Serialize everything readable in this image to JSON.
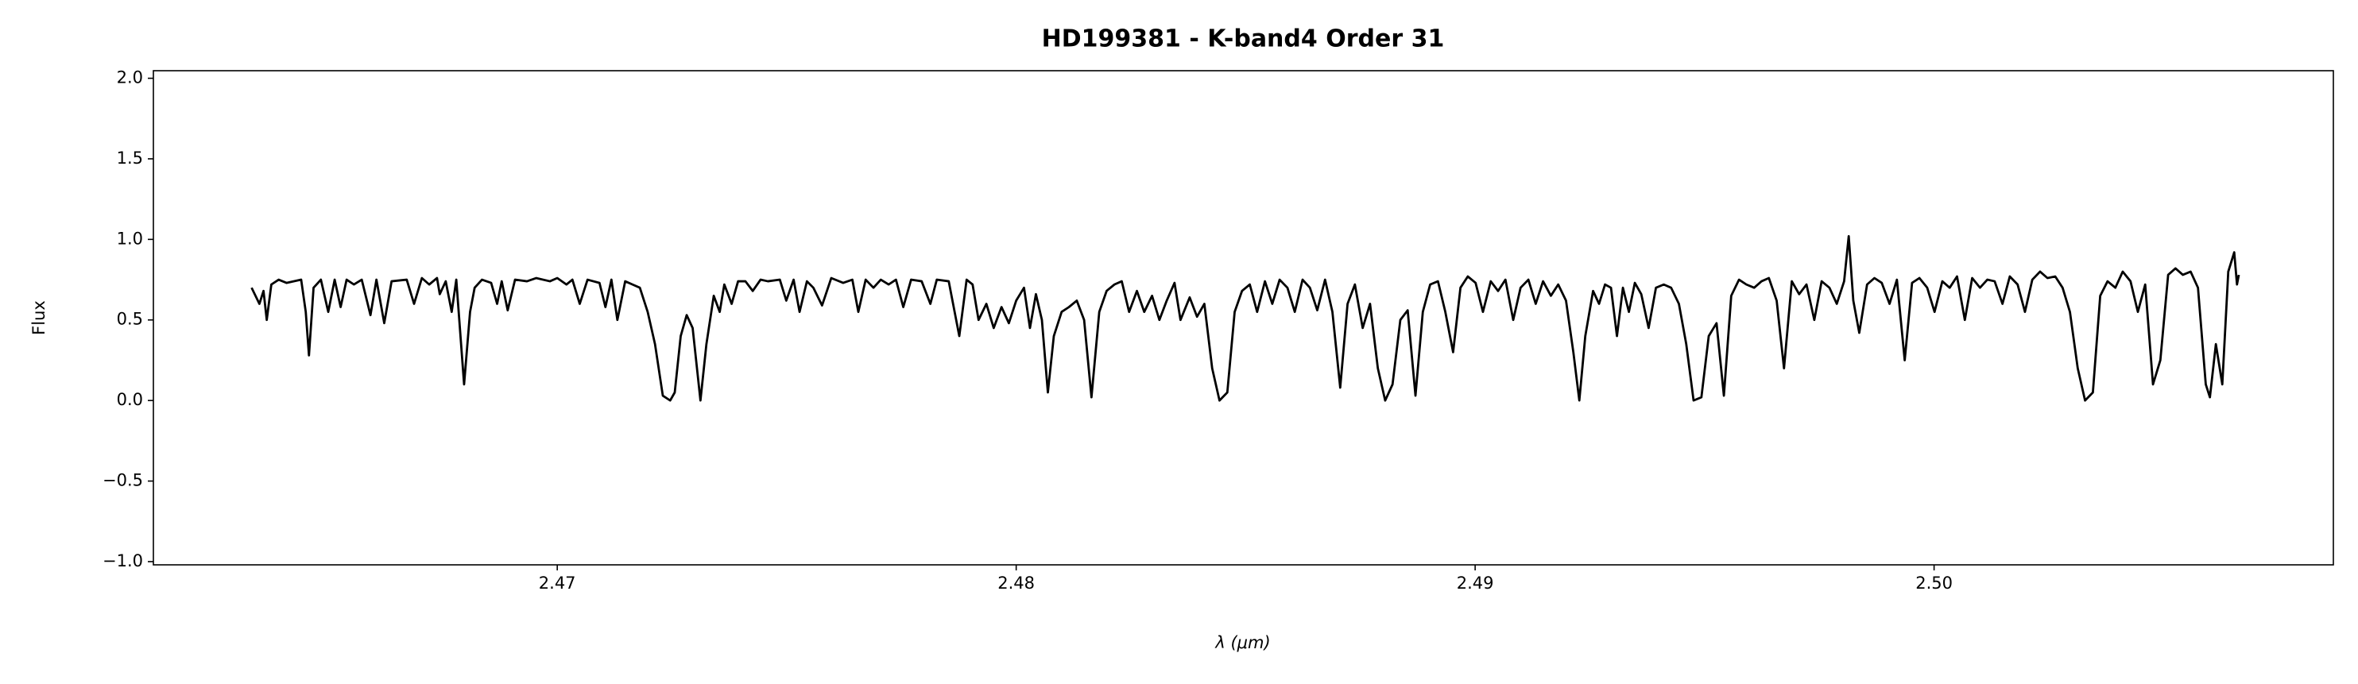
{
  "chart_data": {
    "type": "line",
    "title": "HD199381 - K-band4 Order 31",
    "xlabel": "λ (μm)",
    "ylabel": "Flux",
    "xlim": [
      2.4612,
      2.5087
    ],
    "ylim": [
      -1.02,
      2.047
    ],
    "xticks": [
      2.47,
      2.48,
      2.49,
      {
        "value": 2.5,
        "label": "2.50"
      }
    ],
    "yticks": [
      {
        "value": -1,
        "label": "−1.0"
      },
      {
        "value": -0.5,
        "label": "−0.5"
      },
      {
        "value": 0,
        "label": "0.0"
      },
      0.5,
      {
        "value": 1,
        "label": "1.0"
      },
      1.5,
      {
        "value": 2,
        "label": "2.0"
      }
    ],
    "grid": false,
    "x": [
      2.46334,
      2.46351,
      2.4636,
      2.46367,
      2.46377,
      2.46393,
      2.4641,
      2.46442,
      2.46452,
      2.46459,
      2.46469,
      2.46485,
      2.46501,
      2.46515,
      2.46528,
      2.46541,
      2.46557,
      2.46574,
      2.46593,
      2.46606,
      2.46623,
      2.46639,
      2.46672,
      2.46688,
      2.46705,
      2.46721,
      2.46738,
      2.46744,
      2.46757,
      2.4677,
      2.4678,
      2.46797,
      2.4681,
      2.4682,
      2.46836,
      2.46856,
      2.46869,
      2.46879,
      2.46892,
      2.46908,
      2.46934,
      2.46954,
      2.46984,
      2.47,
      2.4702,
      2.47033,
      2.47049,
      2.47066,
      2.47092,
      2.47105,
      2.47118,
      2.47131,
      2.47148,
      2.47164,
      2.4718,
      2.47197,
      2.47213,
      2.4723,
      2.47246,
      2.47256,
      2.47269,
      2.47282,
      2.47295,
      2.47312,
      2.47325,
      2.47341,
      2.47354,
      2.47364,
      2.4738,
      2.47394,
      2.4741,
      2.47426,
      2.47443,
      2.47459,
      2.47485,
      2.47499,
      2.47515,
      2.47528,
      2.47544,
      2.47558,
      2.47577,
      2.47597,
      2.47623,
      2.47643,
      2.47656,
      2.47672,
      2.47689,
      2.47705,
      2.47722,
      2.47738,
      2.47754,
      2.47771,
      2.47794,
      2.47813,
      2.47827,
      2.47853,
      2.47876,
      2.47892,
      2.47905,
      2.47918,
      2.47935,
      2.47951,
      2.47968,
      2.47984,
      2.48,
      2.48017,
      2.4803,
      2.48043,
      2.48056,
      2.48069,
      2.48082,
      2.48099,
      2.48115,
      2.48132,
      2.48148,
      2.48164,
      2.48181,
      2.48197,
      2.48214,
      2.4823,
      2.48246,
      2.48263,
      2.48279,
      2.48296,
      2.48312,
      2.48328,
      2.48345,
      2.48358,
      2.48378,
      2.48394,
      2.4841,
      2.48427,
      2.48443,
      2.4846,
      2.48476,
      2.48492,
      2.48509,
      2.48525,
      2.48542,
      2.48558,
      2.48574,
      2.48591,
      2.48607,
      2.48624,
      2.4864,
      2.48656,
      2.48673,
      2.48689,
      2.48706,
      2.48722,
      2.48738,
      2.48755,
      2.48771,
      2.48788,
      2.48804,
      2.4882,
      2.48837,
      2.48853,
      2.4887,
      2.48886,
      2.48902,
      2.48919,
      2.48935,
      2.48952,
      2.48968,
      2.48984,
      2.49001,
      2.49017,
      2.49034,
      2.4905,
      2.49066,
      2.49083,
      2.49099,
      2.49116,
      2.49132,
      2.49148,
      2.49165,
      2.49181,
      2.49198,
      2.49214,
      2.49227,
      2.4924,
      2.49257,
      2.4927,
      2.49283,
      2.49296,
      2.49309,
      2.49322,
      2.49335,
      2.49348,
      2.49362,
      2.49378,
      2.49394,
      2.49411,
      2.49427,
      2.49444,
      2.4946,
      2.49476,
      2.49493,
      2.49509,
      2.49526,
      2.49542,
      2.49558,
      2.49575,
      2.49591,
      2.49608,
      2.49624,
      2.4964,
      2.49657,
      2.49673,
      2.4969,
      2.49706,
      2.49722,
      2.49739,
      2.49755,
      2.49772,
      2.49788,
      2.49804,
      2.49814,
      2.49824,
      2.49837,
      2.49854,
      2.4987,
      2.49886,
      2.49903,
      2.49919,
      2.49936,
      2.49952,
      2.49968,
      2.49985,
      2.50001,
      2.50018,
      2.50034,
      2.5005,
      2.50067,
      2.50083,
      2.501,
      2.50116,
      2.50132,
      2.50149,
      2.50165,
      2.50182,
      2.50198,
      2.50214,
      2.50231,
      2.50247,
      2.50264,
      2.5028,
      2.50296,
      2.50313,
      2.50329,
      2.50346,
      2.50362,
      2.50378,
      2.50395,
      2.50411,
      2.50428,
      2.50444,
      2.5046,
      2.50477,
      2.50493,
      2.5051,
      2.50526,
      2.50542,
      2.50559,
      2.50575,
      2.50592,
      2.50601,
      2.50614,
      2.50628,
      2.50641,
      2.50654,
      2.5066,
      2.50664
    ],
    "series": [
      {
        "color": "#000000",
        "values": [
          0.7,
          0.6,
          0.68,
          0.5,
          0.72,
          0.75,
          0.73,
          0.75,
          0.55,
          0.28,
          0.7,
          0.75,
          0.55,
          0.75,
          0.58,
          0.75,
          0.72,
          0.75,
          0.53,
          0.75,
          0.48,
          0.74,
          0.75,
          0.6,
          0.76,
          0.72,
          0.76,
          0.66,
          0.74,
          0.55,
          0.75,
          0.1,
          0.55,
          0.7,
          0.75,
          0.73,
          0.6,
          0.74,
          0.56,
          0.75,
          0.74,
          0.76,
          0.74,
          0.76,
          0.72,
          0.75,
          0.6,
          0.75,
          0.73,
          0.58,
          0.75,
          0.5,
          0.74,
          0.72,
          0.7,
          0.55,
          0.35,
          0.03,
          0.0,
          0.05,
          0.4,
          0.53,
          0.45,
          0.0,
          0.35,
          0.65,
          0.55,
          0.72,
          0.6,
          0.74,
          0.74,
          0.68,
          0.75,
          0.74,
          0.75,
          0.62,
          0.75,
          0.55,
          0.74,
          0.7,
          0.59,
          0.76,
          0.73,
          0.75,
          0.55,
          0.75,
          0.7,
          0.75,
          0.72,
          0.75,
          0.58,
          0.75,
          0.74,
          0.6,
          0.75,
          0.74,
          0.4,
          0.75,
          0.72,
          0.5,
          0.6,
          0.45,
          0.58,
          0.48,
          0.62,
          0.7,
          0.45,
          0.66,
          0.5,
          0.05,
          0.4,
          0.55,
          0.58,
          0.62,
          0.5,
          0.02,
          0.55,
          0.68,
          0.72,
          0.74,
          0.55,
          0.68,
          0.55,
          0.65,
          0.5,
          0.62,
          0.73,
          0.5,
          0.64,
          0.52,
          0.6,
          0.2,
          0.0,
          0.05,
          0.55,
          0.68,
          0.72,
          0.55,
          0.74,
          0.6,
          0.75,
          0.7,
          0.55,
          0.75,
          0.7,
          0.56,
          0.75,
          0.55,
          0.08,
          0.6,
          0.72,
          0.45,
          0.6,
          0.2,
          0.0,
          0.1,
          0.5,
          0.56,
          0.03,
          0.55,
          0.72,
          0.74,
          0.55,
          0.3,
          0.7,
          0.77,
          0.73,
          0.55,
          0.74,
          0.68,
          0.75,
          0.5,
          0.7,
          0.75,
          0.6,
          0.74,
          0.65,
          0.72,
          0.62,
          0.3,
          0.0,
          0.4,
          0.68,
          0.6,
          0.72,
          0.7,
          0.4,
          0.7,
          0.55,
          0.73,
          0.66,
          0.45,
          0.7,
          0.72,
          0.7,
          0.6,
          0.35,
          0.0,
          0.02,
          0.4,
          0.48,
          0.03,
          0.65,
          0.75,
          0.72,
          0.7,
          0.74,
          0.76,
          0.62,
          0.2,
          0.74,
          0.66,
          0.72,
          0.5,
          0.74,
          0.7,
          0.6,
          0.74,
          1.02,
          0.62,
          0.42,
          0.72,
          0.76,
          0.73,
          0.6,
          0.75,
          0.25,
          0.73,
          0.76,
          0.7,
          0.55,
          0.74,
          0.7,
          0.77,
          0.5,
          0.76,
          0.7,
          0.75,
          0.74,
          0.6,
          0.77,
          0.72,
          0.55,
          0.75,
          0.8,
          0.76,
          0.77,
          0.7,
          0.55,
          0.2,
          0.0,
          0.05,
          0.65,
          0.74,
          0.7,
          0.8,
          0.74,
          0.55,
          0.72,
          0.1,
          0.25,
          0.78,
          0.82,
          0.78,
          0.8,
          0.7,
          0.1,
          0.02,
          0.35,
          0.1,
          0.8,
          0.92,
          0.72,
          0.78
        ]
      }
    ]
  }
}
